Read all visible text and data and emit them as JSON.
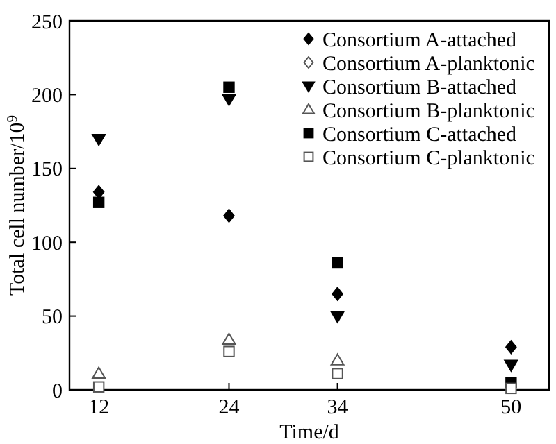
{
  "chart_data": {
    "type": "scatter",
    "xlabel": "Time/d",
    "ylabel": "Total cell number/10$^{9}$",
    "x": [
      12,
      24,
      34,
      50
    ],
    "xlim": [
      9.3,
      53.5
    ],
    "xticks": [
      12,
      24,
      34,
      50
    ],
    "ylim": [
      0,
      250
    ],
    "yticks": [
      0,
      50,
      100,
      150,
      200,
      250
    ],
    "grid": false,
    "legend": "top right",
    "series": [
      {
        "name": "Consortium A-attached",
        "color": "#000000",
        "marker": "diamond",
        "values": [
          134,
          118,
          65,
          29
        ]
      },
      {
        "name": "Consortium A-planktonic",
        "color": "#555555",
        "marker": "diamond",
        "values": [
          null,
          null,
          null,
          null
        ]
      },
      {
        "name": "Consortium B-attached",
        "color": "#000000",
        "marker": "triangle-down",
        "values": [
          170,
          197,
          50,
          17
        ]
      },
      {
        "name": "Consortium B-planktonic",
        "color": "#555555",
        "marker": "triangle",
        "values": [
          11,
          34,
          20,
          null
        ]
      },
      {
        "name": "Consortium C-attached",
        "color": "#000000",
        "marker": "square",
        "values": [
          127,
          205,
          86,
          5
        ]
      },
      {
        "name": "Consortium C-planktonic",
        "color": "#555555",
        "marker": "square",
        "values": [
          2,
          26,
          11,
          1
        ]
      }
    ]
  }
}
